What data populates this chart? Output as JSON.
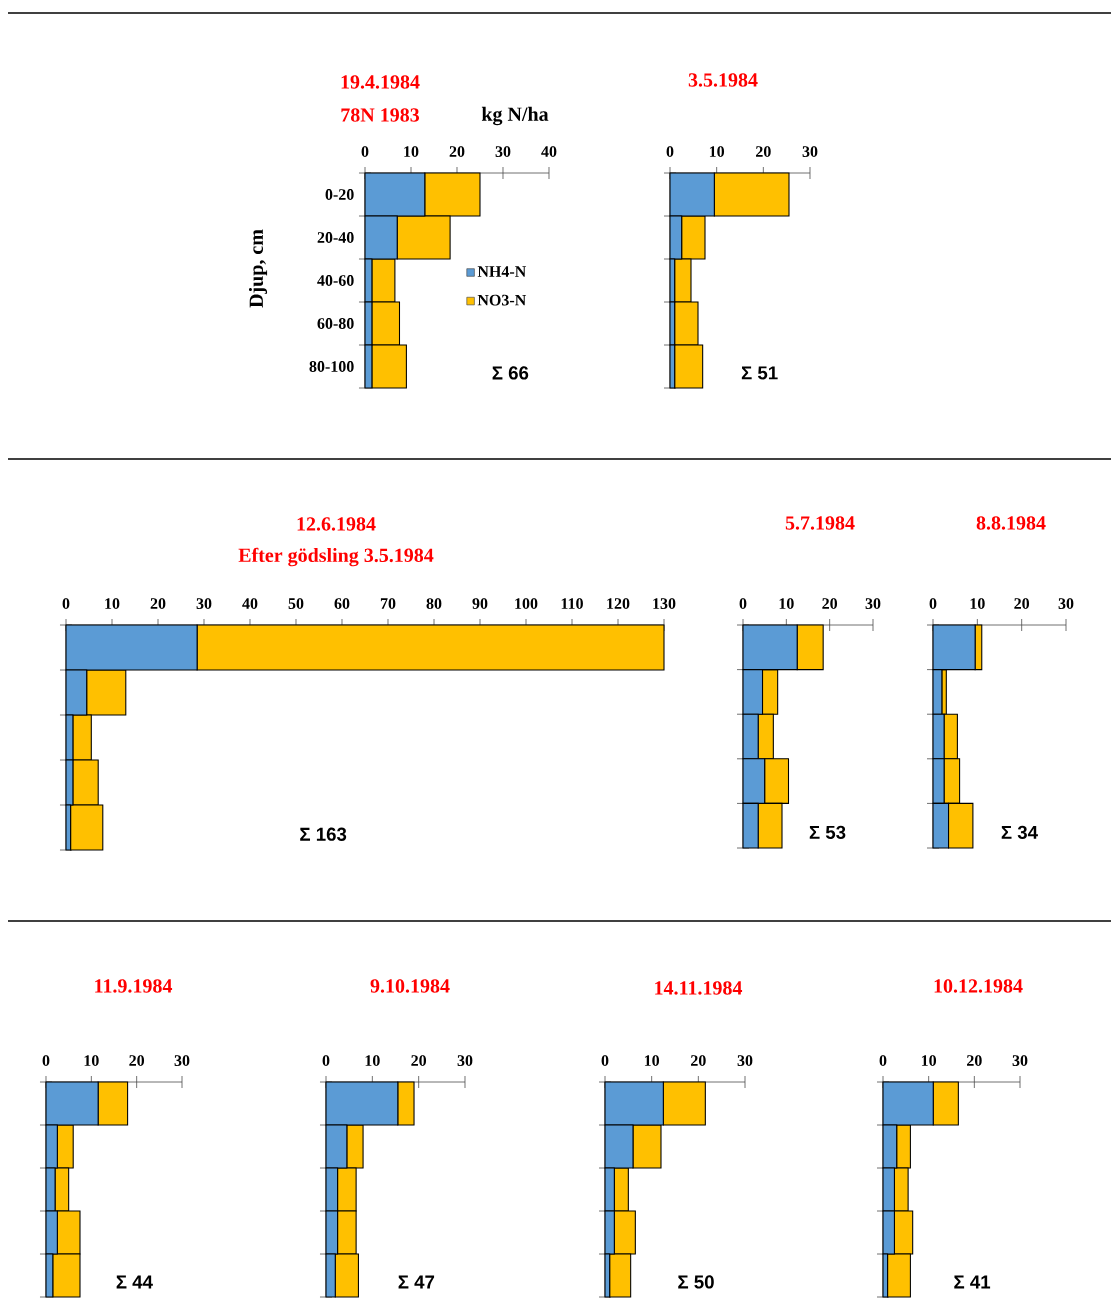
{
  "chart_data": [
    {
      "type": "bar",
      "orientation": "horizontal",
      "stacked": true,
      "title": "19.4.1984",
      "subtitle": "78N 1983",
      "xlabel": "kg N/ha",
      "ylabel": "Djup, cm",
      "categories": [
        "0-20",
        "20-40",
        "40-60",
        "60-80",
        "80-100"
      ],
      "xlim": [
        0,
        40
      ],
      "xticks": [
        0,
        10,
        20,
        30,
        40
      ],
      "legend": "right",
      "annotations": [
        "Σ 66"
      ],
      "series": [
        {
          "name": "NH4-N",
          "color": "#5b9bd5",
          "values": [
            13,
            7,
            1.5,
            1.5,
            1.5
          ]
        },
        {
          "name": "NO3-N",
          "color": "#ffc000",
          "values": [
            12,
            11.5,
            5,
            6,
            7.5
          ]
        }
      ]
    },
    {
      "type": "bar",
      "orientation": "horizontal",
      "stacked": true,
      "title": "3.5.1984",
      "categories": [
        null,
        null,
        null,
        null,
        null
      ],
      "xlim": [
        0,
        30
      ],
      "xticks": [
        0,
        10,
        20,
        30
      ],
      "annotations": [
        "Σ 51"
      ],
      "series": [
        {
          "color": "#5b9bd5",
          "values": [
            9.5,
            2.5,
            1,
            1,
            1
          ]
        },
        {
          "color": "#ffc000",
          "values": [
            16,
            5,
            3.5,
            5,
            6
          ]
        }
      ]
    },
    {
      "type": "bar",
      "orientation": "horizontal",
      "stacked": true,
      "title": "12.6.1984",
      "subtitle": "Efter gödsling 3.5.1984",
      "categories": [
        null,
        null,
        null,
        null,
        null
      ],
      "xlim": [
        0,
        130
      ],
      "xticks": [
        0,
        10,
        20,
        30,
        40,
        50,
        60,
        70,
        80,
        90,
        100,
        110,
        120,
        130
      ],
      "annotations": [
        "Σ 163"
      ],
      "series": [
        {
          "color": "#5b9bd5",
          "values": [
            28.5,
            4.5,
            1.5,
            1.5,
            1
          ]
        },
        {
          "color": "#ffc000",
          "values": [
            101.5,
            8.5,
            4,
            5.5,
            7
          ]
        }
      ]
    },
    {
      "type": "bar",
      "orientation": "horizontal",
      "stacked": true,
      "title": "5.7.1984",
      "categories": [
        null,
        null,
        null,
        null,
        null
      ],
      "xlim": [
        0,
        30
      ],
      "xticks": [
        0,
        10,
        20,
        30
      ],
      "annotations": [
        "Σ 53"
      ],
      "series": [
        {
          "color": "#5b9bd5",
          "values": [
            12.5,
            4.5,
            3.5,
            5,
            3.5
          ]
        },
        {
          "color": "#ffc000",
          "values": [
            6,
            3.5,
            3.5,
            5.5,
            5.5
          ]
        }
      ]
    },
    {
      "type": "bar",
      "orientation": "horizontal",
      "stacked": true,
      "title": "8.8.1984",
      "categories": [
        null,
        null,
        null,
        null,
        null
      ],
      "xlim": [
        0,
        30
      ],
      "xticks": [
        0,
        10,
        20,
        30
      ],
      "annotations": [
        "Σ 34"
      ],
      "series": [
        {
          "color": "#5b9bd5",
          "values": [
            9.5,
            2,
            2.5,
            2.5,
            3.5
          ]
        },
        {
          "color": "#ffc000",
          "values": [
            1.5,
            1,
            3,
            3.5,
            5.5
          ]
        }
      ]
    },
    {
      "type": "bar",
      "orientation": "horizontal",
      "stacked": true,
      "title": "11.9.1984",
      "categories": [
        null,
        null,
        null,
        null,
        null
      ],
      "xlim": [
        0,
        30
      ],
      "xticks": [
        0,
        10,
        20,
        30
      ],
      "annotations": [
        "Σ 44"
      ],
      "series": [
        {
          "color": "#5b9bd5",
          "values": [
            11.5,
            2.5,
            2,
            2.5,
            1.5
          ]
        },
        {
          "color": "#ffc000",
          "values": [
            6.5,
            3.5,
            3,
            5,
            6
          ]
        }
      ]
    },
    {
      "type": "bar",
      "orientation": "horizontal",
      "stacked": true,
      "title": "9.10.1984",
      "categories": [
        null,
        null,
        null,
        null,
        null
      ],
      "xlim": [
        0,
        30
      ],
      "xticks": [
        0,
        10,
        20,
        30
      ],
      "annotations": [
        "Σ 47"
      ],
      "series": [
        {
          "color": "#5b9bd5",
          "values": [
            15.5,
            4.5,
            2.5,
            2.5,
            2
          ]
        },
        {
          "color": "#ffc000",
          "values": [
            3.5,
            3.5,
            4,
            4,
            5
          ]
        }
      ]
    },
    {
      "type": "bar",
      "orientation": "horizontal",
      "stacked": true,
      "title": "14.11.1984",
      "categories": [
        null,
        null,
        null,
        null,
        null
      ],
      "xlim": [
        0,
        30
      ],
      "xticks": [
        0,
        10,
        20,
        30
      ],
      "annotations": [
        "Σ 50"
      ],
      "series": [
        {
          "color": "#5b9bd5",
          "values": [
            12.5,
            6,
            2,
            2,
            1
          ]
        },
        {
          "color": "#ffc000",
          "values": [
            9,
            6,
            3,
            4.5,
            4.5
          ]
        }
      ]
    },
    {
      "type": "bar",
      "orientation": "horizontal",
      "stacked": true,
      "title": "10.12.1984",
      "categories": [
        null,
        null,
        null,
        null,
        null
      ],
      "xlim": [
        0,
        30
      ],
      "xticks": [
        0,
        10,
        20,
        30
      ],
      "annotations": [
        "Σ 41"
      ],
      "series": [
        {
          "color": "#5b9bd5",
          "values": [
            11,
            3,
            2.5,
            2.5,
            1
          ]
        },
        {
          "color": "#ffc000",
          "values": [
            5.5,
            3,
            3,
            4,
            5
          ]
        }
      ]
    }
  ]
}
